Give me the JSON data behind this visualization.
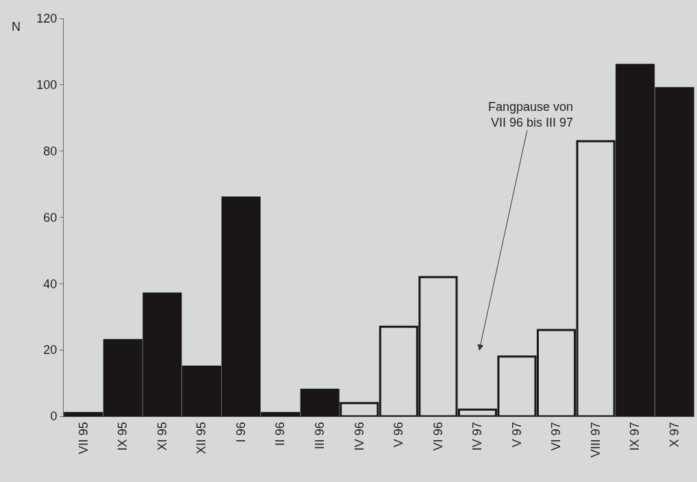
{
  "chart_data": {
    "type": "bar",
    "ylabel": "N",
    "categories": [
      "VII 95",
      "IX 95",
      "XI 95",
      "XII 95",
      "I 96",
      "II 96",
      "III 96",
      "IV 96",
      "V 96",
      "VI 96",
      "IV 97",
      "V 97",
      "VI 97",
      "VIII 97",
      "IX 97",
      "X 97"
    ],
    "values": [
      1,
      23,
      37,
      15,
      66,
      1,
      8,
      4,
      27,
      42,
      2,
      18,
      26,
      83,
      106,
      99
    ],
    "colors": [
      "#1a1616",
      "#1a1616",
      "#1a1616",
      "#1a1616",
      "#1a1616",
      "#1a1616",
      "#1a1616",
      "#d6d9d6",
      "#d6d9d6",
      "#d6d9d6",
      "#d6d9d6",
      "#d6d9d6",
      "#d6d9d6",
      "#d6d9d6",
      "#1a1616",
      "#1a1616"
    ],
    "ylim": [
      0,
      120
    ],
    "yticks": [
      0,
      20,
      40,
      60,
      80,
      100,
      120
    ],
    "grid": false,
    "legend": false,
    "annotations": [
      "Fangpause von\nVII 96 bis III 97"
    ]
  }
}
